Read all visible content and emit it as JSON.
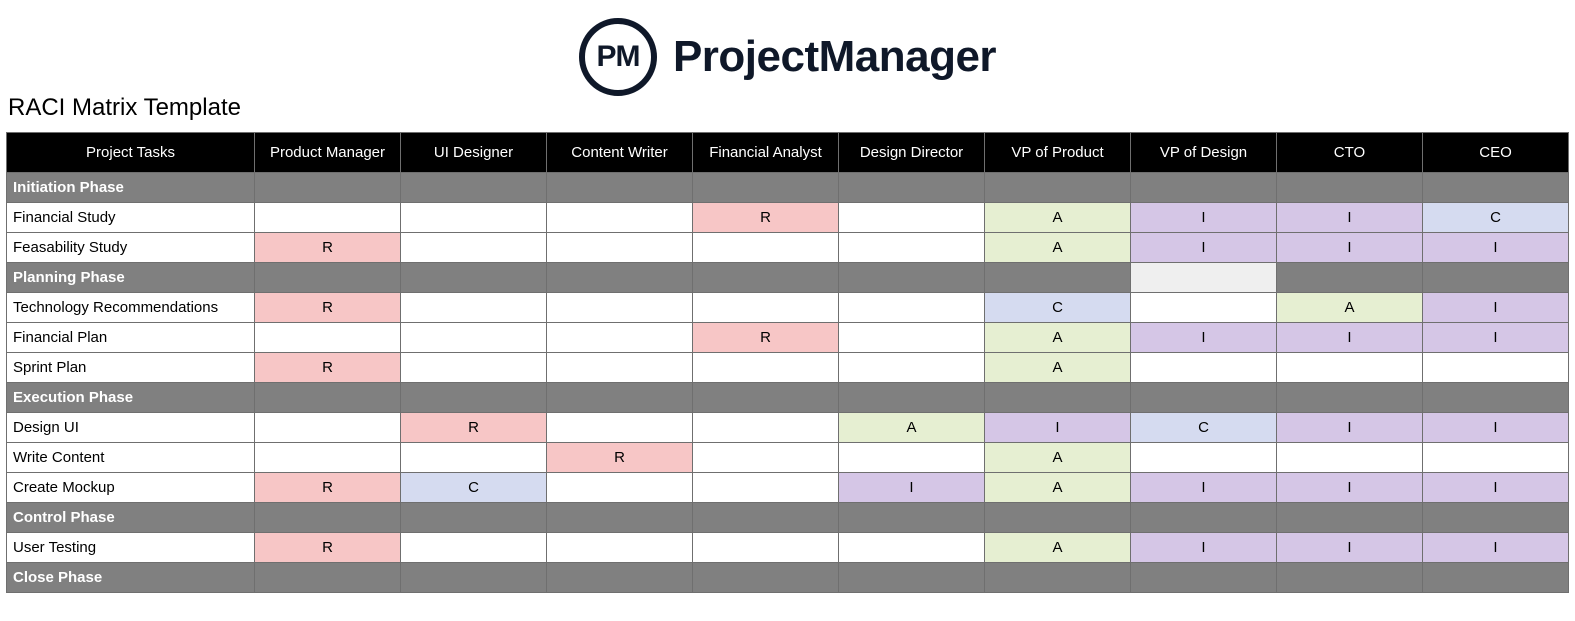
{
  "logo": {
    "initials": "PM",
    "name": "ProjectManager"
  },
  "title": "RACI Matrix Template",
  "colors": {
    "header_bg": "#000000",
    "header_text": "#ffffff",
    "phase_bg": "#808080",
    "phase_text": "#ffffff",
    "R": "#f7c6c6",
    "A": "#e6efd2",
    "C": "#d5dbf0",
    "I": "#d5c6e6",
    "blank": "#ffffff",
    "border": "#6f6f6f",
    "logo": "#0f1829"
  },
  "columns": [
    "Project Tasks",
    "Product Manager",
    "UI Designer",
    "Content Writer",
    "Financial Analyst",
    "Design Director",
    "VP of Product",
    "VP of Design",
    "CTO",
    "CEO"
  ],
  "rows": [
    {
      "type": "phase",
      "label": "Initiation Phase",
      "special_light_col": null
    },
    {
      "type": "task",
      "label": "Financial Study",
      "cells": [
        "",
        "",
        "",
        "R",
        "",
        "A",
        "I",
        "I",
        "C"
      ]
    },
    {
      "type": "task",
      "label": "Feasability Study",
      "cells": [
        "R",
        "",
        "",
        "",
        "",
        "A",
        "I",
        "I",
        "I"
      ]
    },
    {
      "type": "phase",
      "label": "Planning Phase",
      "special_light_col": 7
    },
    {
      "type": "task",
      "label": "Technology Recommendations",
      "cells": [
        "R",
        "",
        "",
        "",
        "",
        "C",
        "",
        "A",
        "I"
      ]
    },
    {
      "type": "task",
      "label": "Financial Plan",
      "cells": [
        "",
        "",
        "",
        "R",
        "",
        "A",
        "I",
        "I",
        "I"
      ]
    },
    {
      "type": "task",
      "label": "Sprint Plan",
      "cells": [
        "R",
        "",
        "",
        "",
        "",
        "A",
        "",
        "",
        ""
      ]
    },
    {
      "type": "phase",
      "label": "Execution Phase",
      "special_light_col": null
    },
    {
      "type": "task",
      "label": "Design UI",
      "cells": [
        "",
        "R",
        "",
        "",
        "A",
        "I",
        "C",
        "I",
        "I"
      ]
    },
    {
      "type": "task",
      "label": "Write Content",
      "cells": [
        "",
        "",
        "R",
        "",
        "",
        "A",
        "",
        "",
        ""
      ]
    },
    {
      "type": "task",
      "label": "Create Mockup",
      "cells": [
        "R",
        "C",
        "",
        "",
        "I",
        "A",
        "I",
        "I",
        "I"
      ]
    },
    {
      "type": "phase",
      "label": "Control Phase",
      "special_light_col": null
    },
    {
      "type": "task",
      "label": "User Testing",
      "cells": [
        "R",
        "",
        "",
        "",
        "",
        "A",
        "I",
        "I",
        "I"
      ]
    },
    {
      "type": "phase",
      "label": "Close Phase",
      "special_light_col": null
    }
  ]
}
